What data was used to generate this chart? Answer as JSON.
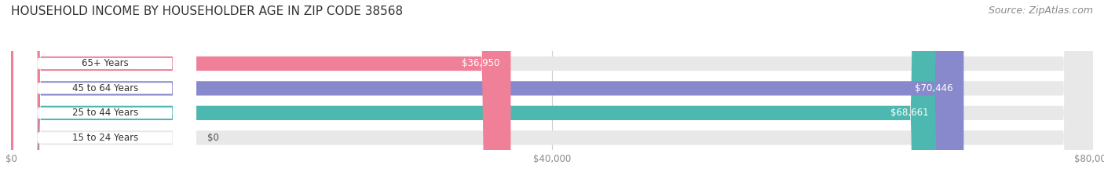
{
  "title": "HOUSEHOLD INCOME BY HOUSEHOLDER AGE IN ZIP CODE 38568",
  "source": "Source: ZipAtlas.com",
  "categories": [
    "15 to 24 Years",
    "25 to 44 Years",
    "45 to 64 Years",
    "65+ Years"
  ],
  "values": [
    0,
    68661,
    70446,
    36950
  ],
  "labels": [
    "$0",
    "$68,661",
    "$70,446",
    "$36,950"
  ],
  "bar_colors": [
    "#c9aed6",
    "#4db8b0",
    "#8888cc",
    "#f08098"
  ],
  "bar_bg_color": "#e8e8e8",
  "xlim": [
    0,
    80000
  ],
  "xticks": [
    0,
    40000,
    80000
  ],
  "xticklabels": [
    "$0",
    "$40,000",
    "$80,000"
  ],
  "fig_bg_color": "#ffffff",
  "bar_height": 0.58,
  "title_fontsize": 11,
  "source_fontsize": 9,
  "label_fontsize": 8.5,
  "tick_fontsize": 8.5,
  "category_fontsize": 8.5
}
